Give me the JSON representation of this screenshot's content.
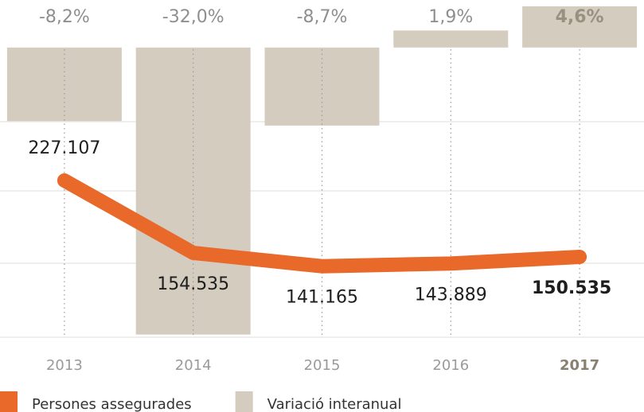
{
  "chart_data": {
    "type": "bar-line",
    "categories": [
      "2013",
      "2014",
      "2015",
      "2016",
      "2017"
    ],
    "series": [
      {
        "name": "Persones assegurades",
        "type": "line",
        "color": "#e8692a",
        "values": [
          227107,
          154535,
          141165,
          143889,
          150535
        ],
        "value_labels": [
          "227.107",
          "154.535",
          "141.165",
          "143.889",
          "150.535"
        ]
      },
      {
        "name": "Variació interanual",
        "type": "bar",
        "axis": "y2",
        "color": "#d4ccbf",
        "values": [
          -8.2,
          -32.0,
          -8.7,
          1.9,
          4.6
        ],
        "value_labels": [
          "-8,2%",
          "-32,0%",
          "-8,7%",
          "1,9%",
          "4,6%"
        ]
      }
    ],
    "ylim": [
      70000,
      408000
    ],
    "y2lim": [
      -32.3,
      5.3
    ]
  }
}
